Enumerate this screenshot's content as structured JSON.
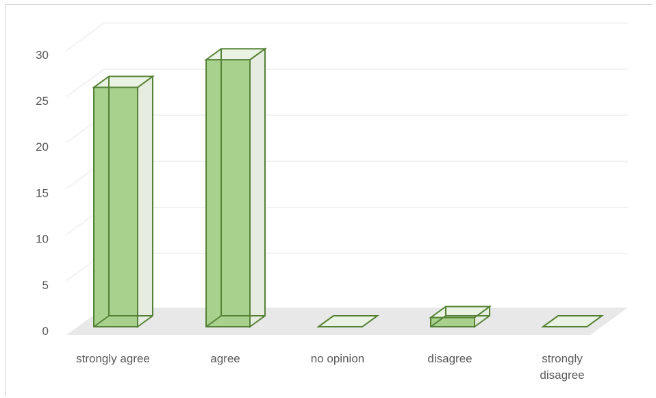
{
  "chart_data": {
    "type": "bar",
    "style": "3d-column",
    "title": "",
    "xlabel": "",
    "ylabel": "",
    "categories": [
      "strongly agree",
      "agree",
      "no opinion",
      "disagree",
      "strongly disagree"
    ],
    "category_lines": [
      [
        "strongly agree"
      ],
      [
        "agree"
      ],
      [
        "no opinion"
      ],
      [
        "disagree"
      ],
      [
        "strongly",
        "disagree"
      ]
    ],
    "values": [
      26,
      29,
      0,
      1,
      0
    ],
    "yticks": [
      "0",
      "5",
      "10",
      "15",
      "20",
      "25",
      "30"
    ],
    "ylim": [
      0,
      30
    ],
    "grid": true,
    "legend": "none",
    "colors": {
      "bar_fill": "#a9d18e",
      "bar_stroke": "#548235",
      "side_fill": "#e6ede0",
      "top_fill": "#eaf2e3",
      "floor_fill": "#e8e8e8",
      "grid": "#ededed",
      "tick_text": "#595959"
    }
  }
}
